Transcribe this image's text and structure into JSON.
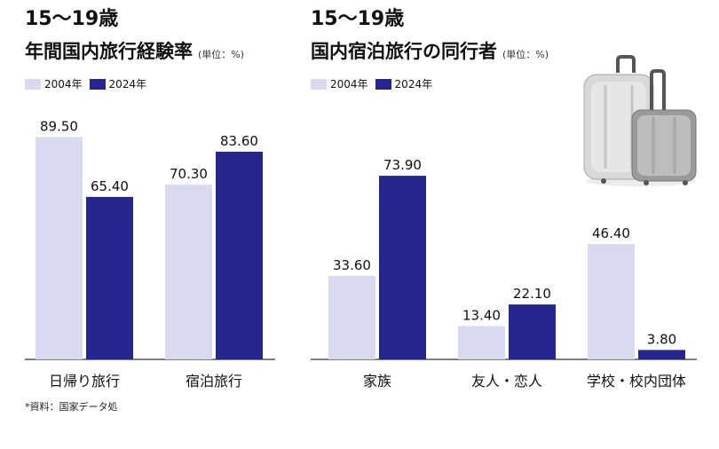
{
  "colors": {
    "c2004": "#d9d9f0",
    "c2024": "#27268f",
    "axis": "#333333"
  },
  "source_note": "*資料：国家データ処",
  "chart_data": [
    {
      "type": "bar",
      "title_line1": "15～19歳",
      "title_line2": "年間国内旅行経験率",
      "unit": "(単位：%)",
      "legend": [
        "2004年",
        "2024年"
      ],
      "categories": [
        "日帰り旅行",
        "宿泊旅行"
      ],
      "series": [
        {
          "name": "2004年",
          "values": [
            89.5,
            70.3
          ]
        },
        {
          "name": "2024年",
          "values": [
            65.4,
            83.6
          ]
        }
      ],
      "value_labels": [
        [
          "89.50",
          "70.30"
        ],
        [
          "65.40",
          "83.60"
        ]
      ],
      "ylim": [
        0,
        100
      ]
    },
    {
      "type": "bar",
      "title_line1": "15～19歳",
      "title_line2": "国内宿泊旅行の同行者",
      "unit": "(単位：%)",
      "legend": [
        "2004年",
        "2024年"
      ],
      "categories": [
        "家族",
        "友人・恋人",
        "学校・校内団体"
      ],
      "series": [
        {
          "name": "2004年",
          "values": [
            33.6,
            13.4,
            46.4
          ]
        },
        {
          "name": "2024年",
          "values": [
            73.9,
            22.1,
            3.8
          ]
        }
      ],
      "value_labels": [
        [
          "33.60",
          "13.40",
          "46.40"
        ],
        [
          "73.90",
          "22.10",
          "3.80"
        ]
      ],
      "ylim": [
        0,
        80
      ]
    }
  ]
}
